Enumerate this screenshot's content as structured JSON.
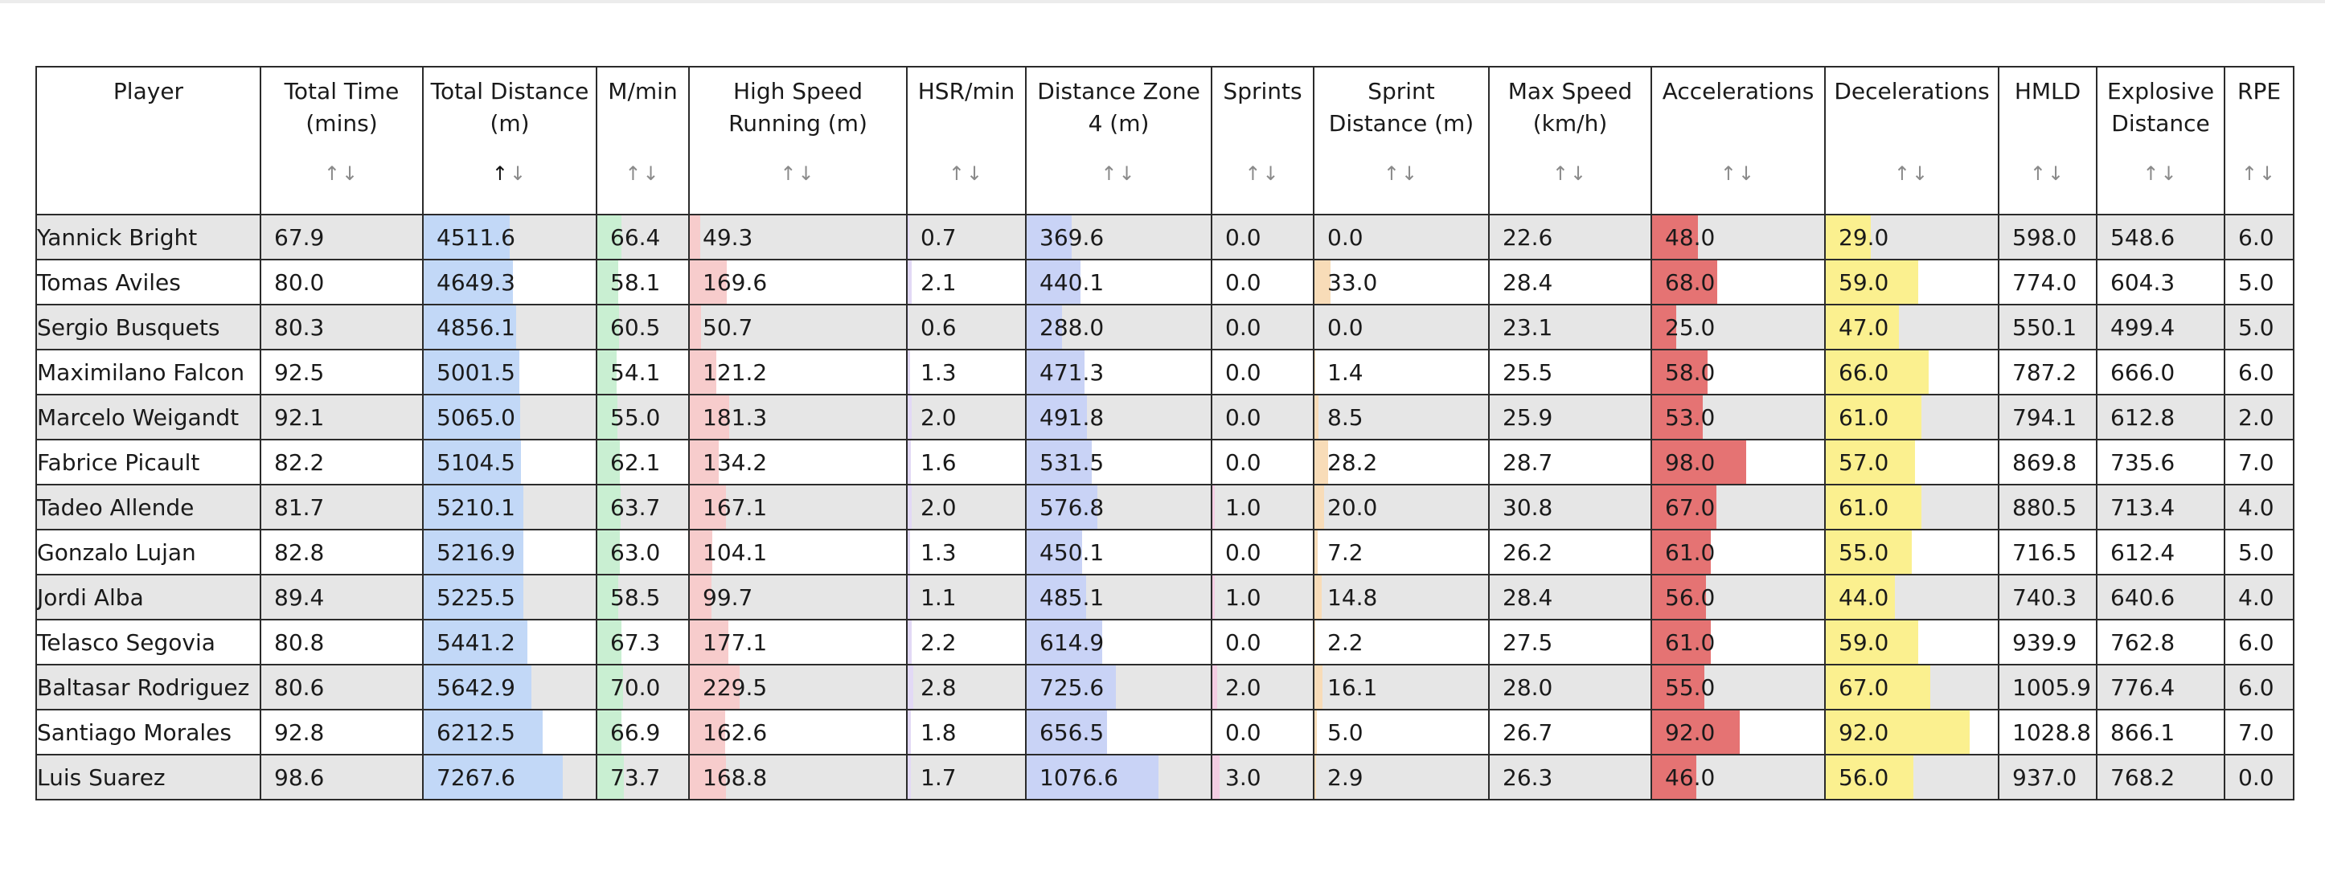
{
  "table": {
    "columns": [
      {
        "key": "player",
        "label": "Player",
        "sortable": false
      },
      {
        "key": "total_time",
        "label": "Total Time (mins)",
        "sortable": true
      },
      {
        "key": "total_distance",
        "label": "Total Distance (m)",
        "sortable": true,
        "sort_active": "asc"
      },
      {
        "key": "m_min",
        "label": "M/min",
        "sortable": true
      },
      {
        "key": "hsr",
        "label": "High Speed Running (m)",
        "sortable": true
      },
      {
        "key": "hsr_min",
        "label": "HSR/min",
        "sortable": true
      },
      {
        "key": "zone4",
        "label": "Distance Zone 4 (m)",
        "sortable": true
      },
      {
        "key": "sprints",
        "label": "Sprints",
        "sortable": true
      },
      {
        "key": "sprint_distance",
        "label": "Sprint Distance (m)",
        "sortable": true
      },
      {
        "key": "max_speed",
        "label": "Max Speed (km/h)",
        "sortable": true
      },
      {
        "key": "accelerations",
        "label": "Accelerations",
        "sortable": true
      },
      {
        "key": "decelerations",
        "label": "Decelerations",
        "sortable": true
      },
      {
        "key": "hmld",
        "label": "HMLD",
        "sortable": true
      },
      {
        "key": "explosive",
        "label": "Explosive Distance",
        "sortable": true
      },
      {
        "key": "rpe",
        "label": "RPE",
        "sortable": true
      }
    ],
    "sort_up_glyph": "↑",
    "sort_down_glyph": "↓",
    "bar_colors": {
      "total_distance": "#c2d8f7",
      "m_min": "#c9efd2",
      "hsr": "#f7cccc",
      "hsr_min": "#e2d9f5",
      "zone4": "#c9d3f6",
      "sprints": "#f4cde3",
      "sprint_distance": "#f8dcb8",
      "accelerations": "#e57373",
      "decelerations": "#fbf08f"
    },
    "bar_max": {
      "total_distance": 9000,
      "m_min": 250,
      "hsr": 1000,
      "hsr_min": 60,
      "zone4": 1500,
      "sprints": 40,
      "sprint_distance": 350,
      "accelerations": 180,
      "decelerations": 110
    },
    "rows": [
      {
        "player": "Yannick Bright",
        "total_time": "67.9",
        "total_distance": "4511.6",
        "m_min": "66.4",
        "hsr": "49.3",
        "hsr_min": "0.7",
        "zone4": "369.6",
        "sprints": "0.0",
        "sprint_distance": "0.0",
        "max_speed": "22.6",
        "accelerations": "48.0",
        "decelerations": "29.0",
        "hmld": "598.0",
        "explosive": "548.6",
        "rpe": "6.0"
      },
      {
        "player": "Tomas Aviles",
        "total_time": "80.0",
        "total_distance": "4649.3",
        "m_min": "58.1",
        "hsr": "169.6",
        "hsr_min": "2.1",
        "zone4": "440.1",
        "sprints": "0.0",
        "sprint_distance": "33.0",
        "max_speed": "28.4",
        "accelerations": "68.0",
        "decelerations": "59.0",
        "hmld": "774.0",
        "explosive": "604.3",
        "rpe": "5.0"
      },
      {
        "player": "Sergio Busquets",
        "total_time": "80.3",
        "total_distance": "4856.1",
        "m_min": "60.5",
        "hsr": "50.7",
        "hsr_min": "0.6",
        "zone4": "288.0",
        "sprints": "0.0",
        "sprint_distance": "0.0",
        "max_speed": "23.1",
        "accelerations": "25.0",
        "decelerations": "47.0",
        "hmld": "550.1",
        "explosive": "499.4",
        "rpe": "5.0"
      },
      {
        "player": "Maximilano Falcon",
        "total_time": "92.5",
        "total_distance": "5001.5",
        "m_min": "54.1",
        "hsr": "121.2",
        "hsr_min": "1.3",
        "zone4": "471.3",
        "sprints": "0.0",
        "sprint_distance": "1.4",
        "max_speed": "25.5",
        "accelerations": "58.0",
        "decelerations": "66.0",
        "hmld": "787.2",
        "explosive": "666.0",
        "rpe": "6.0"
      },
      {
        "player": "Marcelo Weigandt",
        "total_time": "92.1",
        "total_distance": "5065.0",
        "m_min": "55.0",
        "hsr": "181.3",
        "hsr_min": "2.0",
        "zone4": "491.8",
        "sprints": "0.0",
        "sprint_distance": "8.5",
        "max_speed": "25.9",
        "accelerations": "53.0",
        "decelerations": "61.0",
        "hmld": "794.1",
        "explosive": "612.8",
        "rpe": "2.0"
      },
      {
        "player": "Fabrice Picault",
        "total_time": "82.2",
        "total_distance": "5104.5",
        "m_min": "62.1",
        "hsr": "134.2",
        "hsr_min": "1.6",
        "zone4": "531.5",
        "sprints": "0.0",
        "sprint_distance": "28.2",
        "max_speed": "28.7",
        "accelerations": "98.0",
        "decelerations": "57.0",
        "hmld": "869.8",
        "explosive": "735.6",
        "rpe": "7.0"
      },
      {
        "player": "Tadeo Allende",
        "total_time": "81.7",
        "total_distance": "5210.1",
        "m_min": "63.7",
        "hsr": "167.1",
        "hsr_min": "2.0",
        "zone4": "576.8",
        "sprints": "1.0",
        "sprint_distance": "20.0",
        "max_speed": "30.8",
        "accelerations": "67.0",
        "decelerations": "61.0",
        "hmld": "880.5",
        "explosive": "713.4",
        "rpe": "4.0"
      },
      {
        "player": "Gonzalo Lujan",
        "total_time": "82.8",
        "total_distance": "5216.9",
        "m_min": "63.0",
        "hsr": "104.1",
        "hsr_min": "1.3",
        "zone4": "450.1",
        "sprints": "0.0",
        "sprint_distance": "7.2",
        "max_speed": "26.2",
        "accelerations": "61.0",
        "decelerations": "55.0",
        "hmld": "716.5",
        "explosive": "612.4",
        "rpe": "5.0"
      },
      {
        "player": "Jordi Alba",
        "total_time": "89.4",
        "total_distance": "5225.5",
        "m_min": "58.5",
        "hsr": "99.7",
        "hsr_min": "1.1",
        "zone4": "485.1",
        "sprints": "1.0",
        "sprint_distance": "14.8",
        "max_speed": "28.4",
        "accelerations": "56.0",
        "decelerations": "44.0",
        "hmld": "740.3",
        "explosive": "640.6",
        "rpe": "4.0"
      },
      {
        "player": "Telasco Segovia",
        "total_time": "80.8",
        "total_distance": "5441.2",
        "m_min": "67.3",
        "hsr": "177.1",
        "hsr_min": "2.2",
        "zone4": "614.9",
        "sprints": "0.0",
        "sprint_distance": "2.2",
        "max_speed": "27.5",
        "accelerations": "61.0",
        "decelerations": "59.0",
        "hmld": "939.9",
        "explosive": "762.8",
        "rpe": "6.0"
      },
      {
        "player": "Baltasar Rodriguez",
        "total_time": "80.6",
        "total_distance": "5642.9",
        "m_min": "70.0",
        "hsr": "229.5",
        "hsr_min": "2.8",
        "zone4": "725.6",
        "sprints": "2.0",
        "sprint_distance": "16.1",
        "max_speed": "28.0",
        "accelerations": "55.0",
        "decelerations": "67.0",
        "hmld": "1005.9",
        "explosive": "776.4",
        "rpe": "6.0"
      },
      {
        "player": "Santiago Morales",
        "total_time": "92.8",
        "total_distance": "6212.5",
        "m_min": "66.9",
        "hsr": "162.6",
        "hsr_min": "1.8",
        "zone4": "656.5",
        "sprints": "0.0",
        "sprint_distance": "5.0",
        "max_speed": "26.7",
        "accelerations": "92.0",
        "decelerations": "92.0",
        "hmld": "1028.8",
        "explosive": "866.1",
        "rpe": "7.0"
      },
      {
        "player": "Luis Suarez",
        "total_time": "98.6",
        "total_distance": "7267.6",
        "m_min": "73.7",
        "hsr": "168.8",
        "hsr_min": "1.7",
        "zone4": "1076.6",
        "sprints": "3.0",
        "sprint_distance": "2.9",
        "max_speed": "26.3",
        "accelerations": "46.0",
        "decelerations": "56.0",
        "hmld": "937.0",
        "explosive": "768.2",
        "rpe": "0.0"
      }
    ]
  }
}
